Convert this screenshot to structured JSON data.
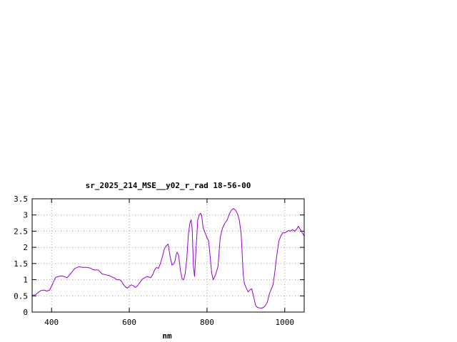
{
  "chart_data": {
    "type": "line",
    "title": "sr_2025_214_MSE__y02_r_rad 18-56-00",
    "xlabel": "nm",
    "ylabel": "",
    "xlim": [
      350,
      1050
    ],
    "ylim": [
      0,
      3.5
    ],
    "x_ticks": [
      400,
      600,
      800,
      1000
    ],
    "y_ticks": [
      0,
      0.5,
      1,
      1.5,
      2,
      2.5,
      3,
      3.5
    ],
    "x_tick_labels": [
      "400",
      "600",
      "800",
      "1000"
    ],
    "y_tick_labels": [
      "0",
      "0.5",
      "1",
      "1.5",
      "2",
      "2.5",
      "3",
      "3.5"
    ],
    "grid": true,
    "legend": "none",
    "series": [
      {
        "color": "#9400d3",
        "x": [
          350,
          358,
          365,
          372,
          380,
          388,
          395,
          402,
          410,
          418,
          425,
          432,
          440,
          450,
          460,
          470,
          480,
          490,
          500,
          505,
          510,
          520,
          530,
          540,
          550,
          556,
          562,
          568,
          575,
          580,
          585,
          590,
          595,
          600,
          605,
          610,
          615,
          620,
          625,
          630,
          635,
          640,
          645,
          650,
          655,
          660,
          665,
          670,
          675,
          680,
          685,
          690,
          695,
          700,
          705,
          710,
          715,
          718,
          720,
          723,
          727,
          732,
          736,
          740,
          744,
          748,
          752,
          756,
          759,
          762,
          765,
          768,
          772,
          776,
          780,
          783,
          786,
          790,
          795,
          800,
          804,
          808,
          812,
          816,
          822,
          828,
          834,
          840,
          846,
          852,
          858,
          863,
          868,
          873,
          878,
          883,
          888,
          893,
          896,
          899,
          902,
          906,
          910,
          915,
          920,
          925,
          930,
          935,
          940,
          945,
          950,
          955,
          960,
          965,
          970,
          975,
          980,
          985,
          990,
          995,
          1000,
          1005,
          1010,
          1015,
          1020,
          1025,
          1030,
          1035,
          1040,
          1045,
          1050
        ],
        "y": [
          0.52,
          0.53,
          0.6,
          0.66,
          0.68,
          0.65,
          0.68,
          0.85,
          1.07,
          1.1,
          1.12,
          1.1,
          1.06,
          1.2,
          1.35,
          1.4,
          1.38,
          1.38,
          1.36,
          1.32,
          1.3,
          1.3,
          1.18,
          1.15,
          1.12,
          1.08,
          1.05,
          1.0,
          1.0,
          0.95,
          0.85,
          0.78,
          0.74,
          0.8,
          0.84,
          0.82,
          0.76,
          0.8,
          0.88,
          0.96,
          1.03,
          1.06,
          1.1,
          1.08,
          1.06,
          1.15,
          1.3,
          1.38,
          1.35,
          1.5,
          1.7,
          1.95,
          2.05,
          2.1,
          1.72,
          1.45,
          1.5,
          1.6,
          1.75,
          1.85,
          1.75,
          1.25,
          1.02,
          1.0,
          1.2,
          1.65,
          2.4,
          2.75,
          2.85,
          2.55,
          1.4,
          1.1,
          2.0,
          2.85,
          3.0,
          3.05,
          3.0,
          2.6,
          2.45,
          2.3,
          2.2,
          1.72,
          1.2,
          1.0,
          1.15,
          1.4,
          2.3,
          2.6,
          2.75,
          2.85,
          3.05,
          3.15,
          3.2,
          3.15,
          3.05,
          2.85,
          2.4,
          1.2,
          0.88,
          0.8,
          0.72,
          0.62,
          0.68,
          0.72,
          0.48,
          0.2,
          0.14,
          0.13,
          0.12,
          0.14,
          0.2,
          0.3,
          0.55,
          0.7,
          0.85,
          1.3,
          1.8,
          2.2,
          2.35,
          2.45,
          2.45,
          2.48,
          2.52,
          2.5,
          2.55,
          2.5,
          2.55,
          2.65,
          2.55,
          2.45,
          2.35
        ]
      }
    ]
  }
}
